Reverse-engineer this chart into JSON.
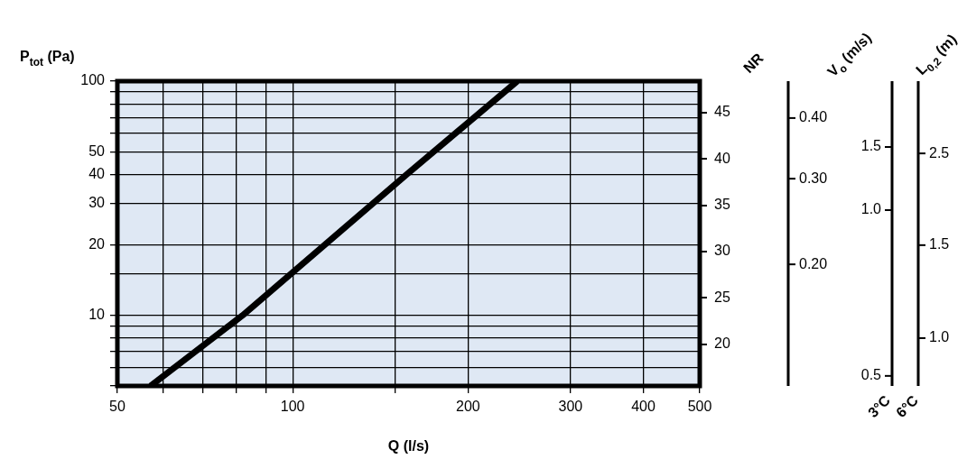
{
  "chart_data": {
    "type": "line",
    "xlabel": "Q (l/s)",
    "ylabel": "P$_{tot}$ (Pa)",
    "y2label": "NR",
    "y3label": "V$_{o}$ (m/s)",
    "annotations": [
      "L$_{0,2}$ (m)",
      "3°C",
      "6°C",
      "1.5",
      "1.0",
      "0.5",
      "2.5",
      "1.5",
      "1.0",
      "0.40",
      "0.30",
      "0.20"
    ],
    "log": "xy",
    "grid": true,
    "legend": false,
    "marker": "none",
    "line_style": "solid",
    "xlim": [
      50,
      500
    ],
    "xticks": [
      50,
      {
        "value": 60,
        "label": null
      },
      {
        "value": 70,
        "label": null
      },
      {
        "value": 80,
        "label": null
      },
      {
        "value": 90,
        "label": null
      },
      100,
      {
        "value": 150,
        "label": null
      },
      200,
      300,
      400,
      500
    ],
    "ylim": [
      5,
      100
    ],
    "yticks": [
      {
        "value": 5,
        "label": null
      },
      {
        "value": 6,
        "label": null
      },
      {
        "value": 7,
        "label": null
      },
      {
        "value": 8,
        "label": null
      },
      {
        "value": 9,
        "label": null
      },
      10,
      {
        "value": 15,
        "label": null
      },
      20,
      30,
      40,
      50,
      {
        "value": 60,
        "label": null
      },
      {
        "value": 70,
        "label": null
      },
      {
        "value": 80,
        "label": null
      },
      {
        "value": 90,
        "label": null
      },
      100
    ],
    "y2lim": [
      15.5,
      48.4
    ],
    "y2ticks": [
      20,
      25,
      30,
      35,
      40,
      45
    ],
    "series": [
      {
        "color": "#000000",
        "x": [
          57,
          82,
          157,
          243
        ],
        "values": [
          5,
          10,
          40,
          100
        ]
      }
    ]
  }
}
